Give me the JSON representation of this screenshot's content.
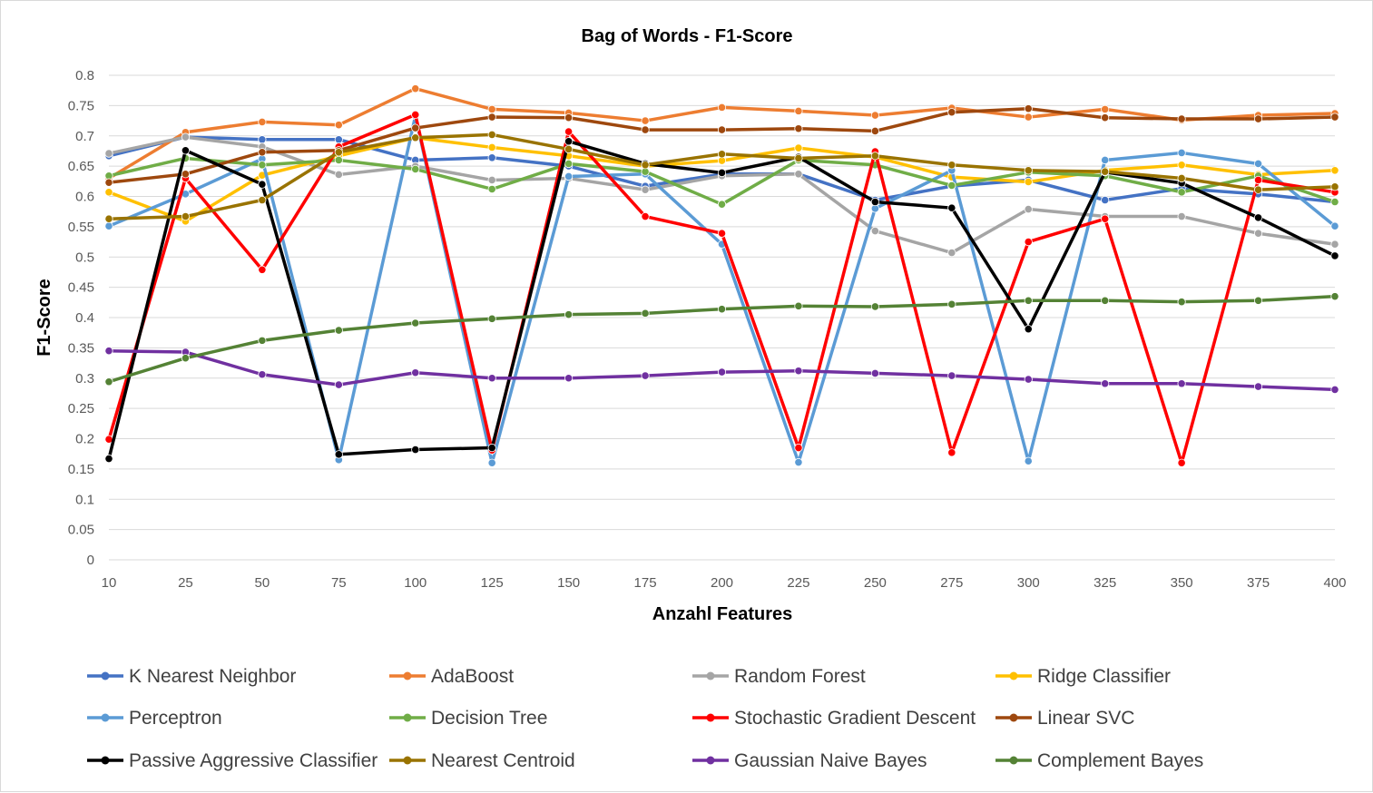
{
  "chart_data": {
    "type": "line",
    "title": "Bag of Words - F1-Score",
    "xlabel": "Anzahl Features",
    "ylabel": "F1-Score",
    "categories": [
      "10",
      "25",
      "50",
      "75",
      "100",
      "125",
      "150",
      "175",
      "200",
      "225",
      "250",
      "275",
      "300",
      "325",
      "350",
      "375",
      "400"
    ],
    "ylim": [
      0,
      0.8
    ],
    "yticks": [
      0,
      0.05,
      0.1,
      0.15,
      0.2,
      0.25,
      0.3,
      0.35,
      0.4,
      0.45,
      0.5,
      0.55,
      0.6,
      0.65,
      0.7,
      0.75,
      0.8
    ],
    "grid": true,
    "legend_position": "bottom",
    "series": [
      {
        "name": "K Nearest Neighbor",
        "color": "#4472C4",
        "values": [
          0.667,
          0.698,
          0.694,
          0.694,
          0.66,
          0.664,
          0.65,
          0.617,
          0.637,
          0.637,
          0.594,
          0.617,
          0.627,
          0.594,
          0.613,
          0.604,
          0.591
        ]
      },
      {
        "name": "AdaBoost",
        "color": "#ED7D31",
        "values": [
          0.63,
          0.706,
          0.723,
          0.718,
          0.778,
          0.744,
          0.738,
          0.725,
          0.747,
          0.741,
          0.734,
          0.746,
          0.731,
          0.744,
          0.726,
          0.734,
          0.737
        ]
      },
      {
        "name": "Random Forest",
        "color": "#A5A5A5",
        "values": [
          0.671,
          0.698,
          0.682,
          0.636,
          0.65,
          0.627,
          0.63,
          0.611,
          0.634,
          0.637,
          0.543,
          0.507,
          0.579,
          0.567,
          0.567,
          0.539,
          0.521
        ]
      },
      {
        "name": "Ridge Classifier",
        "color": "#FFC000",
        "values": [
          0.607,
          0.559,
          0.635,
          0.667,
          0.697,
          0.681,
          0.667,
          0.65,
          0.659,
          0.68,
          0.665,
          0.632,
          0.624,
          0.643,
          0.652,
          0.636,
          0.643
        ]
      },
      {
        "name": "Perceptron",
        "color": "#5B9BD5",
        "values": [
          0.551,
          0.604,
          0.662,
          0.165,
          0.733,
          0.16,
          0.633,
          0.637,
          0.521,
          0.161,
          0.58,
          0.643,
          0.163,
          0.66,
          0.672,
          0.654,
          0.551
        ]
      },
      {
        "name": "Decision Tree",
        "color": "#70AD47",
        "values": [
          0.634,
          0.663,
          0.652,
          0.66,
          0.645,
          0.612,
          0.654,
          0.641,
          0.587,
          0.66,
          0.652,
          0.618,
          0.64,
          0.634,
          0.607,
          0.634,
          0.591
        ]
      },
      {
        "name": "Stochastic Gradient Descent",
        "color": "#FF0000",
        "values": [
          0.199,
          0.63,
          0.479,
          0.682,
          0.735,
          0.181,
          0.707,
          0.567,
          0.539,
          0.185,
          0.674,
          0.177,
          0.525,
          0.563,
          0.16,
          0.627,
          0.607
        ]
      },
      {
        "name": "Linear SVC",
        "color": "#9E480E",
        "values": [
          0.623,
          0.637,
          0.673,
          0.676,
          0.713,
          0.731,
          0.73,
          0.71,
          0.71,
          0.712,
          0.708,
          0.739,
          0.745,
          0.73,
          0.728,
          0.728,
          0.731
        ]
      },
      {
        "name": "Passive Aggressive Classifier",
        "color": "#000000",
        "values": [
          0.167,
          0.676,
          0.62,
          0.174,
          0.182,
          0.185,
          0.691,
          0.654,
          0.639,
          0.665,
          0.591,
          0.581,
          0.381,
          0.64,
          0.622,
          0.565,
          0.502
        ]
      },
      {
        "name": "Nearest Centroid",
        "color": "#997300",
        "values": [
          0.563,
          0.567,
          0.594,
          0.673,
          0.697,
          0.702,
          0.678,
          0.652,
          0.67,
          0.663,
          0.667,
          0.652,
          0.643,
          0.641,
          0.63,
          0.611,
          0.616
        ]
      },
      {
        "name": "Gaussian Naive Bayes",
        "color": "#7030A0",
        "values": [
          0.345,
          0.343,
          0.306,
          0.289,
          0.309,
          0.3,
          0.3,
          0.304,
          0.31,
          0.312,
          0.308,
          0.304,
          0.298,
          0.291,
          0.291,
          0.286,
          0.281
        ]
      },
      {
        "name": "Complement Bayes",
        "color": "#548235",
        "values": [
          0.294,
          0.333,
          0.362,
          0.379,
          0.391,
          0.398,
          0.405,
          0.407,
          0.414,
          0.419,
          0.418,
          0.422,
          0.428,
          0.428,
          0.426,
          0.428,
          0.435
        ]
      }
    ]
  }
}
